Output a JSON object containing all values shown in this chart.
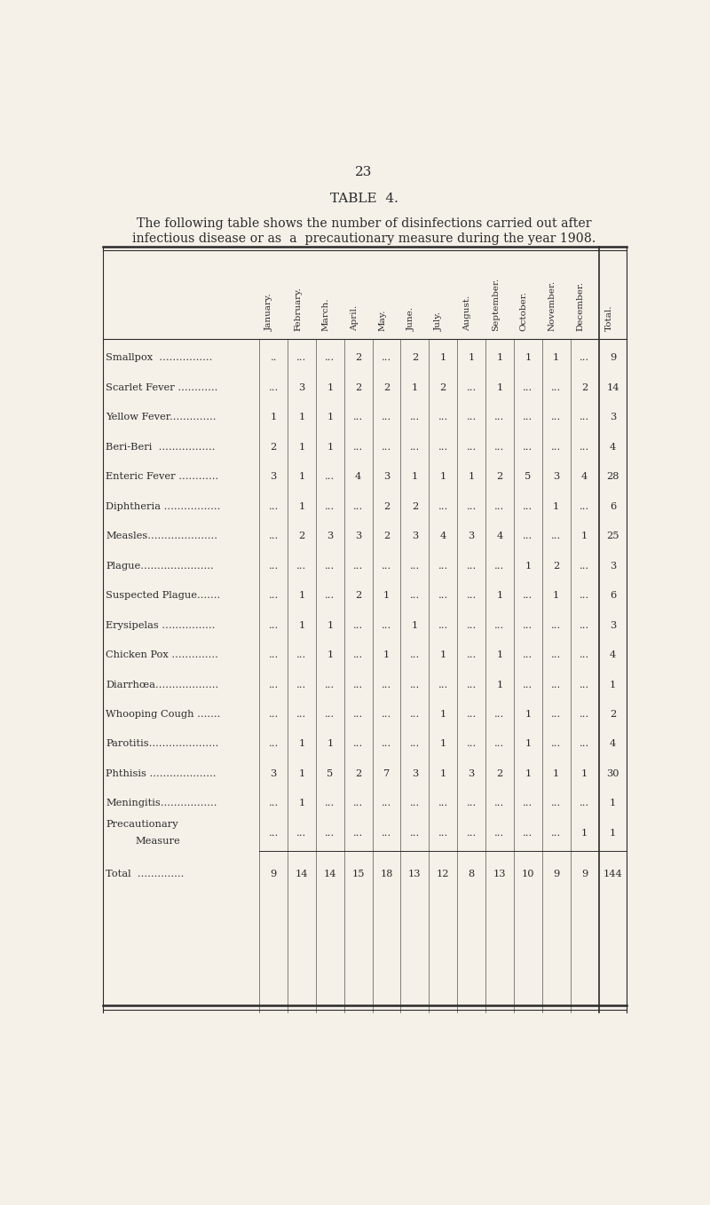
{
  "page_number": "23",
  "title": "TABLE  4.",
  "subtitle_line1": "The following table shows the number of disinfections carried out after",
  "subtitle_line2": "infectious disease or as  a  precautionary measure during the year 1908.",
  "background_color": "#f5f0e8",
  "text_color": "#2a2a2a",
  "columns": [
    "January.",
    "February.",
    "March.",
    "April.",
    "May.",
    "June.",
    "July.",
    "August.",
    "September.",
    "October.",
    "November.",
    "December.",
    "Total."
  ],
  "rows": [
    {
      "label": "Smallpox  ................",
      "values": [
        "..",
        "...",
        "...",
        "2",
        "...",
        "2",
        "1",
        "1",
        "1",
        "1",
        "1",
        "...",
        "9"
      ]
    },
    {
      "label": "Scarlet Fever ............",
      "values": [
        "...",
        "3",
        "1",
        "2",
        "2",
        "1",
        "2",
        "...",
        "1",
        "...",
        "...",
        "2",
        "14"
      ]
    },
    {
      "label": "Yellow Fever..............",
      "values": [
        "1",
        "1",
        "1",
        "...",
        "...",
        "...",
        "...",
        "...",
        "...",
        "...",
        "...",
        "...",
        "3"
      ]
    },
    {
      "label": "Beri-Beri  .................",
      "values": [
        "2",
        "1",
        "1",
        "...",
        "...",
        "...",
        "...",
        "...",
        "...",
        "...",
        "...",
        "...",
        "4"
      ]
    },
    {
      "label": "Enteric Fever ............",
      "values": [
        "3",
        "1",
        "...",
        "4",
        "3",
        "1",
        "1",
        "1",
        "2",
        "5",
        "3",
        "4",
        "28"
      ]
    },
    {
      "label": "Diphtheria .................",
      "values": [
        "...",
        "1",
        "...",
        "...",
        "2",
        "2",
        "...",
        "...",
        "...",
        "...",
        "1",
        "...",
        "6"
      ]
    },
    {
      "label": "Measles.....................",
      "values": [
        "...",
        "2",
        "3",
        "3",
        "2",
        "3",
        "4",
        "3",
        "4",
        "...",
        "...",
        "1",
        "25"
      ]
    },
    {
      "label": "Plague......................",
      "values": [
        "...",
        "...",
        "...",
        "...",
        "...",
        "...",
        "...",
        "...",
        "...",
        "1",
        "2",
        "...",
        "3"
      ]
    },
    {
      "label": "Suspected Plague.......",
      "values": [
        "...",
        "1",
        "...",
        "2",
        "1",
        "...",
        "...",
        "...",
        "1",
        "...",
        "1",
        "...",
        "6"
      ]
    },
    {
      "label": "Erysipelas ................",
      "values": [
        "...",
        "1",
        "1",
        "...",
        "...",
        "1",
        "...",
        "...",
        "...",
        "...",
        "...",
        "...",
        "3"
      ]
    },
    {
      "label": "Chicken Pox ..............",
      "values": [
        "...",
        "...",
        "1",
        "...",
        "1",
        "...",
        "1",
        "...",
        "1",
        "...",
        "...",
        "...",
        "4"
      ]
    },
    {
      "label": "Diarrhœa...................",
      "values": [
        "...",
        "...",
        "...",
        "...",
        "...",
        "...",
        "...",
        "...",
        "1",
        "...",
        "...",
        "...",
        "1"
      ]
    },
    {
      "label": "Whooping Cough .......",
      "values": [
        "...",
        "...",
        "...",
        "...",
        "...",
        "...",
        "1",
        "...",
        "...",
        "1",
        "...",
        "...",
        "2"
      ]
    },
    {
      "label": "Parotitis.....................",
      "values": [
        "...",
        "1",
        "1",
        "...",
        "...",
        "...",
        "1",
        "...",
        "...",
        "1",
        "...",
        "...",
        "4"
      ]
    },
    {
      "label": "Phthisis ....................",
      "values": [
        "3",
        "1",
        "5",
        "2",
        "7",
        "3",
        "1",
        "3",
        "2",
        "1",
        "1",
        "1",
        "30"
      ]
    },
    {
      "label": "Meningitis.................",
      "values": [
        "...",
        "1",
        "...",
        "...",
        "...",
        "...",
        "...",
        "...",
        "...",
        "...",
        "...",
        "...",
        "1"
      ]
    },
    {
      "label": "Precautionary\nMeasure",
      "values": [
        "...",
        "...",
        "...",
        "...",
        "...",
        "...",
        "...",
        "...",
        "...",
        "...",
        "...",
        "1",
        "1"
      ]
    }
  ],
  "total_row": {
    "label": "Total  ..............",
    "values": [
      "9",
      "14",
      "14",
      "15",
      "18",
      "13",
      "12",
      "8",
      "13",
      "10",
      "9",
      "9",
      "144"
    ]
  }
}
